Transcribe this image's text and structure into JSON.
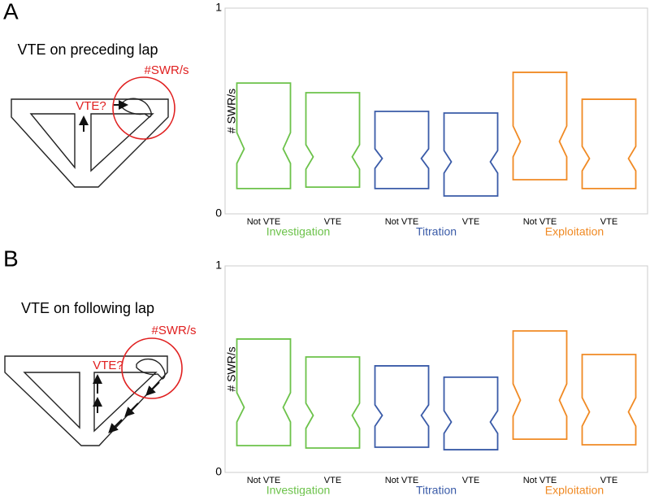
{
  "panels": [
    {
      "label": "A",
      "caption": "VTE on preceding lap",
      "circle_label": "#SWR/s",
      "question": "VTE?"
    },
    {
      "label": "B",
      "caption": "VTE on following lap",
      "circle_label": "#SWR/s",
      "question": "VTE?"
    }
  ],
  "chart_data": [
    {
      "type": "box",
      "ylabel": "# SWR/s",
      "ylim": [
        0,
        1
      ],
      "yticks": [
        0,
        1
      ],
      "series": [
        {
          "name": "Investigation",
          "color": "#6cc24a",
          "categories": [
            "Not VTE",
            "VTE"
          ],
          "low": [
            0.123,
            0.13
          ],
          "notch_low": [
            0.245,
            0.217
          ],
          "median": [
            0.316,
            0.277
          ],
          "notch_high": [
            0.395,
            0.336
          ],
          "high": [
            0.636,
            0.589
          ]
        },
        {
          "name": "Titration",
          "color": "#3a5ba8",
          "categories": [
            "Not VTE",
            "VTE"
          ],
          "low": [
            0.123,
            0.087
          ],
          "notch_low": [
            0.221,
            0.198
          ],
          "median": [
            0.269,
            0.253
          ],
          "notch_high": [
            0.316,
            0.308
          ],
          "high": [
            0.498,
            0.49
          ]
        },
        {
          "name": "Exploitation",
          "color": "#f08a24",
          "categories": [
            "Not VTE",
            "VTE"
          ],
          "low": [
            0.166,
            0.123
          ],
          "notch_low": [
            0.277,
            0.209
          ],
          "median": [
            0.352,
            0.269
          ],
          "notch_high": [
            0.427,
            0.328
          ],
          "high": [
            0.688,
            0.557
          ]
        }
      ]
    },
    {
      "type": "box",
      "ylabel": "# SWR/s",
      "ylim": [
        0,
        1
      ],
      "yticks": [
        0,
        1
      ],
      "series": [
        {
          "name": "Investigation",
          "color": "#6cc24a",
          "categories": [
            "Not VTE",
            "VTE"
          ],
          "low": [
            0.13,
            0.118
          ],
          "notch_low": [
            0.244,
            0.213
          ],
          "median": [
            0.315,
            0.276
          ],
          "notch_high": [
            0.386,
            0.335
          ],
          "high": [
            0.646,
            0.559
          ]
        },
        {
          "name": "Titration",
          "color": "#3a5ba8",
          "categories": [
            "Not VTE",
            "VTE"
          ],
          "low": [
            0.122,
            0.11
          ],
          "notch_low": [
            0.224,
            0.189
          ],
          "median": [
            0.276,
            0.244
          ],
          "notch_high": [
            0.327,
            0.299
          ],
          "high": [
            0.516,
            0.461
          ]
        },
        {
          "name": "Exploitation",
          "color": "#f08a24",
          "categories": [
            "Not VTE",
            "VTE"
          ],
          "low": [
            0.161,
            0.134
          ],
          "notch_low": [
            0.272,
            0.224
          ],
          "median": [
            0.35,
            0.293
          ],
          "notch_high": [
            0.429,
            0.362
          ],
          "high": [
            0.685,
            0.571
          ]
        }
      ]
    }
  ]
}
